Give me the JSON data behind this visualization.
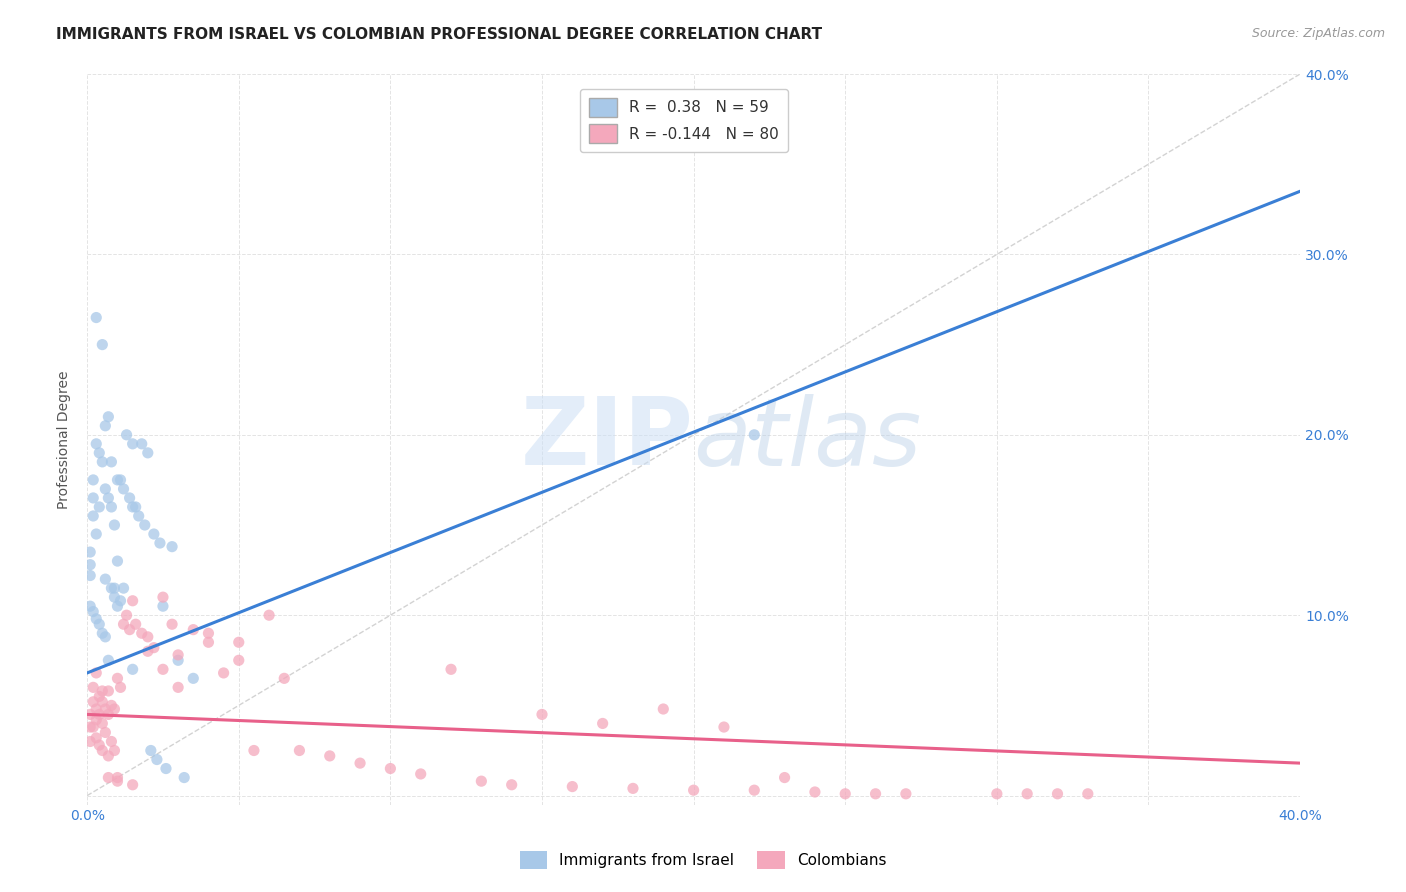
{
  "title": "IMMIGRANTS FROM ISRAEL VS COLOMBIAN PROFESSIONAL DEGREE CORRELATION CHART",
  "source": "Source: ZipAtlas.com",
  "ylabel": "Professional Degree",
  "xlim": [
    0.0,
    0.4
  ],
  "ylim": [
    -0.005,
    0.4
  ],
  "israel_color": "#a8c8e8",
  "colombian_color": "#f4a8bc",
  "israel_line_color": "#3a7fd5",
  "colombian_line_color": "#e8608a",
  "diag_line_color": "#c0c0c0",
  "R_israel": 0.38,
  "N_israel": 59,
  "R_colombian": -0.144,
  "N_colombian": 80,
  "israel_scatter_x": [
    0.001,
    0.001,
    0.001,
    0.001,
    0.002,
    0.002,
    0.002,
    0.002,
    0.003,
    0.003,
    0.003,
    0.003,
    0.004,
    0.004,
    0.004,
    0.005,
    0.005,
    0.005,
    0.006,
    0.006,
    0.006,
    0.007,
    0.007,
    0.008,
    0.008,
    0.009,
    0.009,
    0.01,
    0.01,
    0.011,
    0.011,
    0.012,
    0.012,
    0.013,
    0.014,
    0.015,
    0.015,
    0.016,
    0.017,
    0.018,
    0.019,
    0.02,
    0.021,
    0.022,
    0.023,
    0.024,
    0.025,
    0.026,
    0.028,
    0.03,
    0.032,
    0.035,
    0.01,
    0.008,
    0.006,
    0.007,
    0.009,
    0.22,
    0.015
  ],
  "israel_scatter_y": [
    0.135,
    0.128,
    0.122,
    0.105,
    0.175,
    0.165,
    0.155,
    0.102,
    0.265,
    0.195,
    0.145,
    0.098,
    0.19,
    0.16,
    0.095,
    0.25,
    0.185,
    0.09,
    0.205,
    0.17,
    0.088,
    0.21,
    0.165,
    0.185,
    0.115,
    0.115,
    0.11,
    0.175,
    0.105,
    0.175,
    0.108,
    0.17,
    0.115,
    0.2,
    0.165,
    0.195,
    0.07,
    0.16,
    0.155,
    0.195,
    0.15,
    0.19,
    0.025,
    0.145,
    0.02,
    0.14,
    0.105,
    0.015,
    0.138,
    0.075,
    0.01,
    0.065,
    0.13,
    0.16,
    0.12,
    0.075,
    0.15,
    0.2,
    0.16
  ],
  "colombian_scatter_x": [
    0.001,
    0.001,
    0.001,
    0.002,
    0.002,
    0.002,
    0.003,
    0.003,
    0.003,
    0.004,
    0.004,
    0.004,
    0.005,
    0.005,
    0.005,
    0.006,
    0.006,
    0.007,
    0.007,
    0.007,
    0.008,
    0.008,
    0.009,
    0.009,
    0.01,
    0.01,
    0.011,
    0.012,
    0.013,
    0.014,
    0.015,
    0.016,
    0.018,
    0.02,
    0.022,
    0.025,
    0.028,
    0.03,
    0.035,
    0.04,
    0.045,
    0.05,
    0.055,
    0.06,
    0.065,
    0.07,
    0.08,
    0.09,
    0.1,
    0.11,
    0.12,
    0.13,
    0.14,
    0.15,
    0.16,
    0.17,
    0.18,
    0.19,
    0.2,
    0.21,
    0.22,
    0.23,
    0.24,
    0.25,
    0.26,
    0.27,
    0.3,
    0.31,
    0.32,
    0.33,
    0.003,
    0.005,
    0.007,
    0.01,
    0.015,
    0.02,
    0.025,
    0.03,
    0.04,
    0.05
  ],
  "colombian_scatter_y": [
    0.045,
    0.038,
    0.03,
    0.06,
    0.052,
    0.038,
    0.048,
    0.042,
    0.032,
    0.055,
    0.045,
    0.028,
    0.052,
    0.04,
    0.025,
    0.048,
    0.035,
    0.058,
    0.045,
    0.022,
    0.05,
    0.03,
    0.048,
    0.025,
    0.065,
    0.01,
    0.06,
    0.095,
    0.1,
    0.092,
    0.108,
    0.095,
    0.09,
    0.088,
    0.082,
    0.11,
    0.095,
    0.078,
    0.092,
    0.085,
    0.068,
    0.075,
    0.025,
    0.1,
    0.065,
    0.025,
    0.022,
    0.018,
    0.015,
    0.012,
    0.07,
    0.008,
    0.006,
    0.045,
    0.005,
    0.04,
    0.004,
    0.048,
    0.003,
    0.038,
    0.003,
    0.01,
    0.002,
    0.001,
    0.001,
    0.001,
    0.001,
    0.001,
    0.001,
    0.001,
    0.068,
    0.058,
    0.01,
    0.008,
    0.006,
    0.08,
    0.07,
    0.06,
    0.09,
    0.085
  ],
  "israel_trend": [
    0.0,
    0.4
  ],
  "israel_trend_y": [
    0.068,
    0.335
  ],
  "colombian_trend": [
    0.0,
    0.4
  ],
  "colombian_trend_y": [
    0.045,
    0.018
  ],
  "watermark_zip": "ZIP",
  "watermark_atlas": "atlas",
  "background_color": "#ffffff",
  "grid_color": "#dddddd",
  "title_fontsize": 11,
  "axis_label_fontsize": 10,
  "tick_fontsize": 10,
  "legend_fontsize": 11,
  "source_fontsize": 9
}
